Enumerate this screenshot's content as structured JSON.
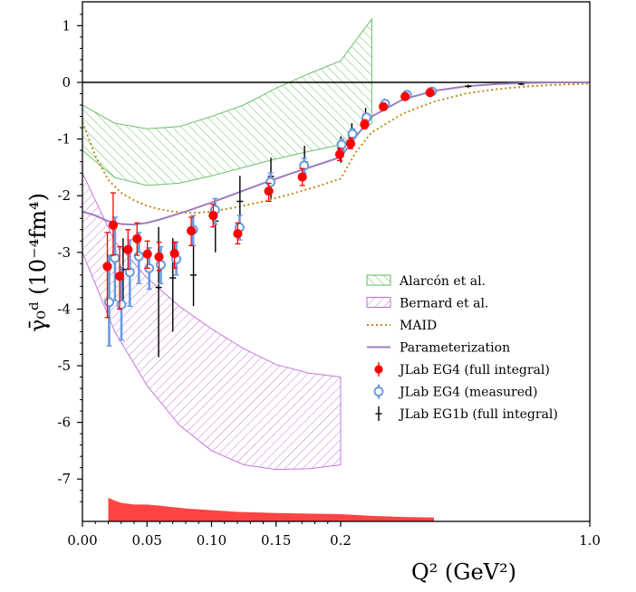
{
  "chart_data": {
    "type": "scatter",
    "title": "",
    "xlabel": "Q² (GeV²)",
    "ylabel": "γ̄₀ᵈ (10⁻⁴fm⁴)",
    "x_scale": "custom-compressed (linear 0–0.2, compressed to 1.0)",
    "xlim": [
      0,
      1.0
    ],
    "ylim": [
      -7.75,
      1.4
    ],
    "xticks": [
      {
        "value": 0.0,
        "label": "0.00"
      },
      {
        "value": 0.05,
        "label": "0.05"
      },
      {
        "value": 0.1,
        "label": "0.10"
      },
      {
        "value": 0.15,
        "label": "0.15"
      },
      {
        "value": 0.2,
        "label": "0.2"
      },
      {
        "value": 1.0,
        "label": "1.0"
      }
    ],
    "yticks": [
      {
        "value": 1,
        "label": "1"
      },
      {
        "value": 0,
        "label": "0"
      },
      {
        "value": -1,
        "label": "-1"
      },
      {
        "value": -2,
        "label": "-2"
      },
      {
        "value": -3,
        "label": "-3"
      },
      {
        "value": -4,
        "label": "-4"
      },
      {
        "value": -5,
        "label": "-5"
      },
      {
        "value": -6,
        "label": "-6"
      },
      {
        "value": -7,
        "label": "-7"
      }
    ],
    "legend_position": "right-middle",
    "legend": [
      {
        "label": "Alarcón et al.",
        "kind": "hatch-green"
      },
      {
        "label": "Bernard et al.",
        "kind": "hatch-purple"
      },
      {
        "label": "MAID",
        "kind": "dotted-line"
      },
      {
        "label": "Parameterization",
        "kind": "line"
      },
      {
        "label": "JLab EG4 (full integral)",
        "kind": "red-marker"
      },
      {
        "label": "JLab EG4 (measured)",
        "kind": "blue-open-marker"
      },
      {
        "label": "JLab EG1b (full integral)",
        "kind": "black-cross"
      }
    ],
    "colors": {
      "alarcon": "#5cb85c",
      "bernard": "#c26ad6",
      "maid": "#c08a1a",
      "param": "#a07cc0",
      "eg4_full": "#ff0000",
      "eg4_meas": "#6a9be0",
      "eg1b": "#000000",
      "syst": "#ff4444"
    },
    "alarcon_band": {
      "x": [
        0.0,
        0.025,
        0.05,
        0.075,
        0.1,
        0.125,
        0.15,
        0.175,
        0.2,
        0.3
      ],
      "upper": [
        -0.4,
        -0.72,
        -0.82,
        -0.78,
        -0.6,
        -0.4,
        -0.1,
        0.15,
        0.38,
        1.12
      ],
      "lower": [
        -1.2,
        -1.68,
        -1.82,
        -1.78,
        -1.65,
        -1.5,
        -1.35,
        -1.22,
        -1.1,
        -0.72
      ]
    },
    "bernard_band": {
      "x": [
        0.0,
        0.025,
        0.05,
        0.075,
        0.1,
        0.125,
        0.15,
        0.175,
        0.2
      ],
      "upper": [
        -1.6,
        -2.8,
        -3.45,
        -3.95,
        -4.35,
        -4.7,
        -4.98,
        -5.13,
        -5.2
      ],
      "lower": [
        -3.0,
        -4.4,
        -5.35,
        -6.05,
        -6.5,
        -6.75,
        -6.83,
        -6.82,
        -6.75
      ]
    },
    "maid": {
      "x": [
        0.0,
        0.01,
        0.02,
        0.03,
        0.04,
        0.05,
        0.06,
        0.07,
        0.08,
        0.09,
        0.1,
        0.12,
        0.14,
        0.16,
        0.18,
        0.2,
        0.25,
        0.3,
        0.4,
        0.5,
        0.6,
        0.7,
        0.8,
        0.9,
        1.0
      ],
      "y": [
        -0.7,
        -1.3,
        -1.72,
        -1.95,
        -2.08,
        -2.18,
        -2.24,
        -2.28,
        -2.3,
        -2.3,
        -2.28,
        -2.2,
        -2.1,
        -1.98,
        -1.85,
        -1.7,
        -1.22,
        -0.88,
        -0.55,
        -0.34,
        -0.2,
        -0.12,
        -0.07,
        -0.04,
        -0.02
      ]
    },
    "parameterization": {
      "x": [
        0.0,
        0.01,
        0.02,
        0.03,
        0.04,
        0.05,
        0.06,
        0.07,
        0.08,
        0.09,
        0.1,
        0.12,
        0.14,
        0.16,
        0.18,
        0.2,
        0.25,
        0.3,
        0.4,
        0.5,
        0.6,
        0.7,
        0.8,
        0.9,
        1.0
      ],
      "y": [
        -2.28,
        -2.35,
        -2.45,
        -2.5,
        -2.51,
        -2.48,
        -2.42,
        -2.35,
        -2.28,
        -2.2,
        -2.12,
        -1.95,
        -1.78,
        -1.62,
        -1.47,
        -1.32,
        -0.95,
        -0.6,
        -0.3,
        -0.15,
        -0.07,
        -0.03,
        -0.01,
        0.0,
        0.0
      ]
    },
    "eg4_full": [
      {
        "x": 0.02,
        "y": -3.25,
        "lo": -4.15,
        "hi": -2.65
      },
      {
        "x": 0.0245,
        "y": -2.52,
        "lo": -3.05,
        "hi": -1.95
      },
      {
        "x": 0.0295,
        "y": -3.42,
        "lo": -4.0,
        "hi": -2.9
      },
      {
        "x": 0.036,
        "y": -2.95,
        "lo": -3.3,
        "hi": -2.6
      },
      {
        "x": 0.043,
        "y": -2.76,
        "lo": -3.05,
        "hi": -2.48
      },
      {
        "x": 0.051,
        "y": -3.03,
        "lo": -3.28,
        "hi": -2.8
      },
      {
        "x": 0.06,
        "y": -3.08,
        "lo": -3.32,
        "hi": -2.82
      },
      {
        "x": 0.072,
        "y": -3.02,
        "lo": -3.28,
        "hi": -2.82
      },
      {
        "x": 0.085,
        "y": -2.62,
        "lo": -2.88,
        "hi": -2.38
      },
      {
        "x": 0.102,
        "y": -2.35,
        "lo": -2.55,
        "hi": -2.15
      },
      {
        "x": 0.121,
        "y": -2.67,
        "lo": -2.85,
        "hi": -2.48
      },
      {
        "x": 0.145,
        "y": -1.92,
        "lo": -2.1,
        "hi": -1.78
      },
      {
        "x": 0.171,
        "y": -1.67,
        "lo": -1.82,
        "hi": -1.52
      },
      {
        "x": 0.2,
        "y": -1.27,
        "lo": -1.38,
        "hi": -1.16
      },
      {
        "x": 0.235,
        "y": -1.08,
        "lo": -1.17,
        "hi": -0.98
      },
      {
        "x": 0.28,
        "y": -0.74,
        "lo": -0.82,
        "hi": -0.66
      },
      {
        "x": 0.34,
        "y": -0.43,
        "lo": -0.49,
        "hi": -0.37
      },
      {
        "x": 0.41,
        "y": -0.25,
        "lo": -0.3,
        "hi": -0.2
      },
      {
        "x": 0.49,
        "y": -0.18,
        "lo": -0.22,
        "hi": -0.14
      }
    ],
    "eg4_measured": [
      {
        "x": 0.02,
        "y": -3.88,
        "lo": -4.65,
        "hi": -3.05
      },
      {
        "x": 0.0245,
        "y": -3.1,
        "lo": -3.85,
        "hi": -2.38
      },
      {
        "x": 0.0295,
        "y": -3.92,
        "lo": -4.55,
        "hi": -3.25
      },
      {
        "x": 0.036,
        "y": -3.35,
        "lo": -3.95,
        "hi": -2.78
      },
      {
        "x": 0.043,
        "y": -3.07,
        "lo": -3.55,
        "hi": -2.65
      },
      {
        "x": 0.051,
        "y": -3.28,
        "lo": -3.65,
        "hi": -2.92
      },
      {
        "x": 0.06,
        "y": -3.22,
        "lo": -3.55,
        "hi": -2.9
      },
      {
        "x": 0.072,
        "y": -3.12,
        "lo": -3.4,
        "hi": -2.82
      },
      {
        "x": 0.085,
        "y": -2.6,
        "lo": -2.88,
        "hi": -2.35
      },
      {
        "x": 0.102,
        "y": -2.25,
        "lo": -2.5,
        "hi": -2.05
      },
      {
        "x": 0.121,
        "y": -2.56,
        "lo": -2.78,
        "hi": -2.35
      },
      {
        "x": 0.145,
        "y": -1.76,
        "lo": -1.92,
        "hi": -1.6
      },
      {
        "x": 0.171,
        "y": -1.47,
        "lo": -1.6,
        "hi": -1.34
      },
      {
        "x": 0.2,
        "y": -1.1,
        "lo": -1.2,
        "hi": -1.0
      },
      {
        "x": 0.235,
        "y": -0.91,
        "lo": -1.0,
        "hi": -0.82
      },
      {
        "x": 0.28,
        "y": -0.62,
        "lo": -0.7,
        "hi": -0.55
      },
      {
        "x": 0.34,
        "y": -0.38,
        "lo": -0.43,
        "hi": -0.33
      },
      {
        "x": 0.41,
        "y": -0.22,
        "lo": -0.26,
        "hi": -0.18
      },
      {
        "x": 0.49,
        "y": -0.16,
        "lo": -0.19,
        "hi": -0.13
      }
    ],
    "eg1b": [
      {
        "x": 0.0315,
        "y": -3.3,
        "lo": -3.9,
        "hi": -2.75
      },
      {
        "x": 0.059,
        "y": -3.62,
        "lo": -4.85,
        "hi": -2.55
      },
      {
        "x": 0.07,
        "y": -3.45,
        "lo": -4.4,
        "hi": -2.75
      },
      {
        "x": 0.086,
        "y": -3.4,
        "lo": -3.95,
        "hi": -2.82
      },
      {
        "x": 0.103,
        "y": -2.45,
        "lo": -3.0,
        "hi": -2.05
      },
      {
        "x": 0.122,
        "y": -2.1,
        "lo": -2.65,
        "hi": -1.65
      },
      {
        "x": 0.146,
        "y": -1.66,
        "lo": -2.05,
        "hi": -1.33
      },
      {
        "x": 0.172,
        "y": -1.4,
        "lo": -1.7,
        "hi": -1.12
      },
      {
        "x": 0.201,
        "y": -1.18,
        "lo": -1.42,
        "hi": -0.95
      },
      {
        "x": 0.236,
        "y": -0.9,
        "lo": -1.1,
        "hi": -0.72
      },
      {
        "x": 0.28,
        "y": -0.57,
        "lo": -0.7,
        "hi": -0.45
      },
      {
        "x": 0.34,
        "y": -0.37,
        "lo": -0.45,
        "hi": -0.29
      },
      {
        "x": 0.41,
        "y": -0.2,
        "lo": -0.26,
        "hi": -0.15
      },
      {
        "x": 0.49,
        "y": -0.15,
        "lo": -0.19,
        "hi": -0.11
      },
      {
        "x": 0.61,
        "y": -0.07,
        "lo": -0.1,
        "hi": -0.04
      },
      {
        "x": 0.78,
        "y": -0.03,
        "lo": -0.05,
        "hi": -0.01
      }
    ],
    "systematic_band": {
      "x": [
        0.02,
        0.025,
        0.03,
        0.04,
        0.05,
        0.06,
        0.08,
        0.1,
        0.12,
        0.15,
        0.2,
        0.3,
        0.4,
        0.5
      ],
      "top": [
        -7.33,
        -7.38,
        -7.42,
        -7.45,
        -7.45,
        -7.47,
        -7.52,
        -7.55,
        -7.58,
        -7.6,
        -7.62,
        -7.65,
        -7.67,
        -7.68
      ]
    }
  }
}
